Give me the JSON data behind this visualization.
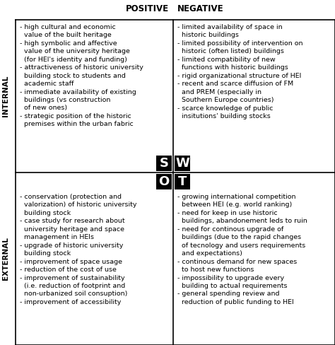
{
  "title_positive": "POSITIVE",
  "title_negative": "NEGATIVE",
  "label_internal": "INTERNAL",
  "label_external": "EXTERNAL",
  "s_letter": "S",
  "w_letter": "W",
  "o_letter": "O",
  "t_letter": "T",
  "s_text": "- high cultural and economic\n  value of the built heritage\n- high symbolic and affective\n  value of the university heritage\n  (for HEI's identity and funding)\n- attractiveness of historic university\n  building stock to students and\n  academic staff\n- immediate availability of existing\n  buildings (vs construction\n  of new ones)\n- strategic position of the historic\n  premises within the urban fabric",
  "w_text": "- limited availability of space in\n  historic buildings\n- limited possibility of intervention on\n  historic (often listed) buildings\n- limited compatibility of new\n  functions with historic buildings\n- rigid organizational structure of HEI\n- recent and scarce diffusion of FM\n  and PREM (especially in\n  Southern Europe countries)\n- scarce knowledge of public\n  insitutions' building stocks",
  "o_text": "- conservation (protection and\n  valorization) of historic university\n  building stock\n- case study for research about\n  university heritage and space\n  management in HEIs\n- upgrade of historic university\n  building stock\n- improvement of space usage\n- reduction of the cost of use\n- improvement of sustainability\n  (i.e. reduction of footprint and\n  non-urbanized soil consuption)\n- improvement of accessibility",
  "t_text": "- growing international competition\n  between HEI (e.g. world ranking)\n- need for keep in use historic\n  buildings, abandonement leds to ruin\n- need for continous upgrade of\n  buildings (due to the rapid changes\n  of tecnology and users requirements\n  and expectations)\n- continous demand for new spaces\n  to host new functions\n- impossibility to upgrade every\n  building to actual requirements\n- general spending review and\n  reduction of public funding to HEI",
  "bg_color": "#ffffff",
  "text_color": "#000000",
  "box_color": "#000000",
  "letter_bg": "#000000",
  "letter_color": "#ffffff",
  "header_fontsize": 8.5,
  "content_fontsize": 6.8,
  "letter_fontsize": 13,
  "side_label_fontsize": 7.5
}
